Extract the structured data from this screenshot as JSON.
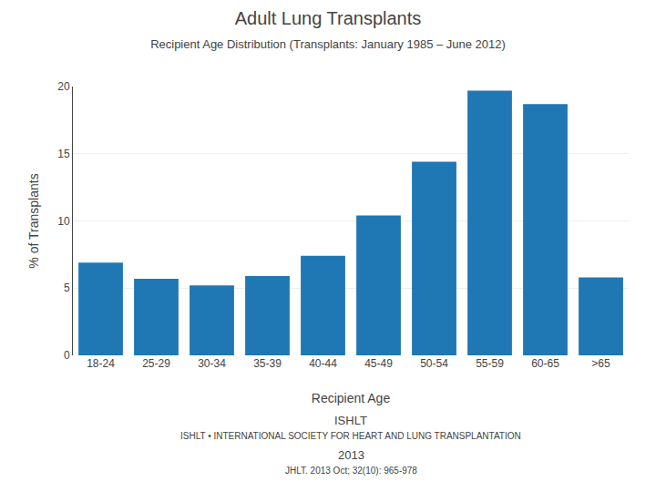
{
  "chart_data": {
    "type": "bar",
    "title": "Adult Lung Transplants",
    "subtitle": "Recipient Age Distribution (Transplants: January 1985 – June 2012)",
    "x_label": "Recipient Age",
    "y_label": "% of Transplants",
    "categories": [
      "18-24",
      "25-29",
      "30-34",
      "35-39",
      "40-44",
      "45-49",
      "50-54",
      "55-59",
      "60-65",
      ">65"
    ],
    "values": [
      6.9,
      5.7,
      5.2,
      5.9,
      7.4,
      10.4,
      14.4,
      19.7,
      18.7,
      5.8
    ],
    "ylim": [
      0,
      20
    ],
    "yticks": [
      0,
      5,
      10,
      15,
      20
    ],
    "grid": true,
    "annotations": [
      "ISHLT",
      "ISHLT • INTERNATIONAL SOCIETY FOR HEART AND LUNG TRANSPLANTATION",
      "2013",
      "JHLT. 2013 Oct; 32(10): 965-978"
    ]
  }
}
